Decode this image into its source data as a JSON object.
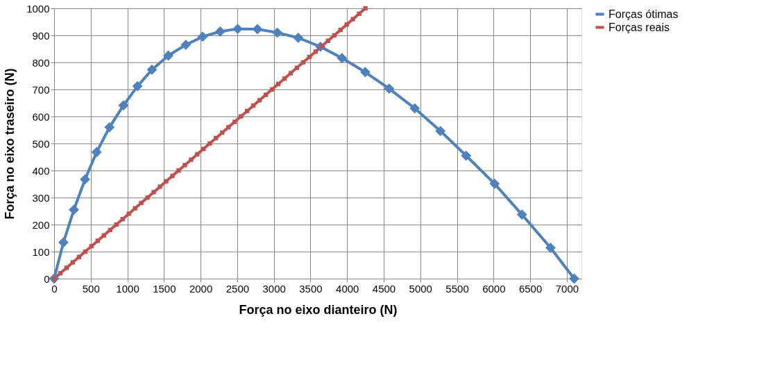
{
  "chart_data": {
    "type": "line",
    "xlabel": "Força no eixo dianteiro (N)",
    "ylabel": "Força no eixo traseiro (N)",
    "xlim": [
      0,
      7200
    ],
    "xticks": [
      0,
      500,
      1000,
      1500,
      2000,
      2500,
      3000,
      3500,
      4000,
      4500,
      5000,
      5500,
      6000,
      6500,
      7000
    ],
    "ylim": [
      0,
      1000
    ],
    "yticks": [
      0,
      100,
      200,
      300,
      400,
      500,
      600,
      700,
      800,
      900,
      1000
    ],
    "grid": true,
    "legend": "right",
    "line_style": "solid",
    "series": [
      {
        "name": "Forças ótimas",
        "color": "#4f81bd",
        "marker": "diamond",
        "x": [
          0,
          127,
          270,
          422,
          580,
          756,
          947,
          1138,
          1336,
          1559,
          1798,
          2028,
          2267,
          2506,
          2776,
          3047,
          3333,
          3636,
          3930,
          4248,
          4574,
          4924,
          5274,
          5625,
          6014,
          6388,
          6778,
          7100
        ],
        "values": [
          0,
          134,
          255,
          367,
          468,
          560,
          641,
          712,
          773,
          825,
          865,
          895,
          914,
          924,
          923,
          910,
          891,
          858,
          816,
          764,
          703,
          630,
          546,
          455,
          351,
          237,
          114,
          0
        ]
      },
      {
        "name": "Forças reais",
        "color": "#c0504d",
        "marker": "square",
        "x": [
          0,
          85,
          170,
          255,
          340,
          425,
          510,
          595,
          680,
          765,
          850,
          935,
          1020,
          1105,
          1190,
          1275,
          1360,
          1445,
          1530,
          1615,
          1700,
          1785,
          1870,
          1955,
          2040,
          2125,
          2210,
          2295,
          2380,
          2465,
          2550,
          2635,
          2720,
          2805,
          2890,
          2975,
          3060,
          3145,
          3230,
          3315,
          3400,
          3485,
          3570,
          3655,
          3740,
          3825,
          3910,
          3995,
          4080,
          4165,
          4250
        ],
        "values": [
          0,
          20,
          40,
          60,
          80,
          100,
          120,
          140,
          160,
          180,
          200,
          220,
          240,
          260,
          280,
          300,
          320,
          340,
          360,
          380,
          400,
          420,
          440,
          460,
          480,
          500,
          520,
          540,
          560,
          580,
          600,
          620,
          640,
          660,
          680,
          700,
          720,
          740,
          760,
          780,
          800,
          820,
          840,
          860,
          880,
          900,
          920,
          940,
          960,
          980,
          1000
        ]
      }
    ]
  }
}
